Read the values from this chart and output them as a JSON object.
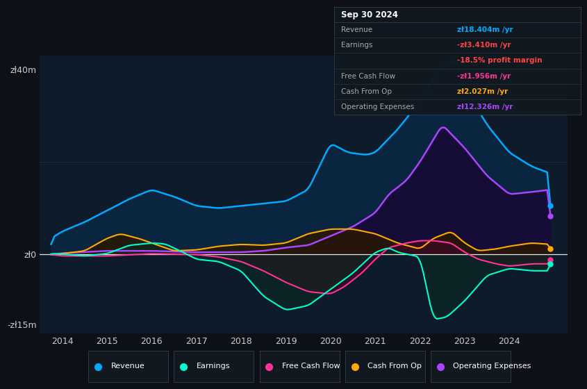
{
  "bg_color": "#0d1117",
  "plot_bg_color": "#0d1b2a",
  "ylim": [
    -17,
    43
  ],
  "xlim": [
    2013.5,
    2025.3
  ],
  "x_ticks": [
    2014,
    2015,
    2016,
    2017,
    2018,
    2019,
    2020,
    2021,
    2022,
    2023,
    2024
  ],
  "y_ticks": [
    40,
    0,
    -15
  ],
  "y_tick_labels": [
    "zł40m",
    "zł0",
    "-zł15m"
  ],
  "grid_line_y": 20,
  "colors": {
    "Revenue": "#00aaff",
    "Revenue_fill": "#0a2540",
    "Earnings": "#00ffcc",
    "Earnings_fill": "#0a2a20",
    "FreeCashFlow": "#ff3399",
    "FreeCashFlow_fill": "#3a0a20",
    "CashFromOp": "#ffaa00",
    "CashFromOp_fill": "#2a1800",
    "OperatingExpenses": "#aa44ff",
    "OperatingExpenses_fill": "#180a38"
  },
  "legend_items": [
    {
      "label": "Revenue",
      "color": "#00aaff"
    },
    {
      "label": "Earnings",
      "color": "#00ffcc"
    },
    {
      "label": "Free Cash Flow",
      "color": "#ff3399"
    },
    {
      "label": "Cash From Op",
      "color": "#ffaa00"
    },
    {
      "label": "Operating Expenses",
      "color": "#aa44ff"
    }
  ],
  "tooltip_title": "Sep 30 2024",
  "tooltip_rows": [
    {
      "label": "Revenue",
      "value": "zł18.404m /yr",
      "color": "#00aaff"
    },
    {
      "label": "Earnings",
      "value": "-zł3.410m /yr",
      "color": "#ff4444"
    },
    {
      "label": "",
      "value": "-18.5% profit margin",
      "color": "#ff4444"
    },
    {
      "label": "Free Cash Flow",
      "value": "-zł1.956m /yr",
      "color": "#ff3399"
    },
    {
      "label": "Cash From Op",
      "value": "zł2.027m /yr",
      "color": "#ffaa00"
    },
    {
      "label": "Operating Expenses",
      "value": "zł12.326m /yr",
      "color": "#aa44ff"
    }
  ],
  "revenue_pts": {
    "2013.75": 3.5,
    "2014.0": 5.0,
    "2014.5": 7.0,
    "2015.0": 9.5,
    "2015.5": 12.0,
    "2016.0": 14.0,
    "2016.5": 12.5,
    "2017.0": 10.5,
    "2017.5": 10.0,
    "2018.0": 10.5,
    "2018.5": 11.0,
    "2019.0": 11.5,
    "2019.5": 14.0,
    "2020.0": 24.0,
    "2020.4": 22.0,
    "2020.8": 21.5,
    "2021.0": 22.0,
    "2021.5": 27.0,
    "2022.0": 33.0,
    "2022.5": 41.0,
    "2022.8": 42.0,
    "2023.0": 36.0,
    "2023.5": 28.0,
    "2024.0": 22.0,
    "2024.5": 19.0,
    "2024.92": 17.5
  },
  "opex_pts": {
    "2013.75": 0.0,
    "2014.0": 0.3,
    "2015.0": 0.8,
    "2016.0": 0.8,
    "2017.0": 0.5,
    "2018.0": 0.5,
    "2018.5": 0.8,
    "2019.0": 1.5,
    "2019.5": 2.0,
    "2020.0": 4.0,
    "2020.5": 6.0,
    "2021.0": 9.0,
    "2021.3": 13.0,
    "2021.7": 16.0,
    "2022.0": 20.0,
    "2022.5": 28.0,
    "2023.0": 23.0,
    "2023.5": 17.0,
    "2024.0": 13.0,
    "2024.5": 13.5,
    "2024.92": 14.0
  },
  "cashop_pts": {
    "2013.75": 0.0,
    "2014.0": 0.2,
    "2014.5": 0.8,
    "2015.0": 3.5,
    "2015.3": 4.5,
    "2015.7": 3.5,
    "2016.0": 2.5,
    "2016.5": 0.8,
    "2017.0": 1.0,
    "2017.5": 1.8,
    "2018.0": 2.2,
    "2018.5": 2.0,
    "2019.0": 2.5,
    "2019.5": 4.5,
    "2020.0": 5.5,
    "2020.5": 5.5,
    "2021.0": 4.5,
    "2021.5": 2.5,
    "2022.0": 1.2,
    "2022.3": 3.5,
    "2022.7": 5.0,
    "2023.0": 2.5,
    "2023.3": 0.8,
    "2023.7": 1.2,
    "2024.0": 1.8,
    "2024.5": 2.5,
    "2024.92": 2.2
  },
  "earnings_pts": {
    "2013.75": 0.2,
    "2014.0": 0.1,
    "2014.5": -0.3,
    "2015.0": 0.2,
    "2015.5": 2.0,
    "2016.0": 2.5,
    "2016.3": 2.3,
    "2016.7": 0.5,
    "2017.0": -1.0,
    "2017.5": -1.5,
    "2018.0": -3.5,
    "2018.5": -9.0,
    "2019.0": -12.0,
    "2019.5": -11.0,
    "2020.0": -7.5,
    "2020.5": -4.0,
    "2021.0": 0.5,
    "2021.3": 1.5,
    "2021.5": 0.5,
    "2022.0": -0.5,
    "2022.3": -14.0,
    "2022.6": -13.5,
    "2023.0": -10.0,
    "2023.5": -4.5,
    "2024.0": -3.0,
    "2024.5": -3.5,
    "2024.92": -3.5
  },
  "fcf_pts": {
    "2013.75": 0.0,
    "2014.0": -0.3,
    "2015.0": -0.3,
    "2016.0": 0.2,
    "2016.5": 0.1,
    "2017.0": 0.0,
    "2017.5": -0.5,
    "2018.0": -1.5,
    "2018.5": -3.5,
    "2019.0": -6.0,
    "2019.5": -8.0,
    "2020.0": -8.5,
    "2020.3": -7.0,
    "2020.7": -4.0,
    "2021.0": -1.0,
    "2021.3": 1.5,
    "2021.7": 2.5,
    "2022.0": 3.0,
    "2022.3": 3.0,
    "2022.7": 2.5,
    "2023.0": 0.5,
    "2023.3": -1.0,
    "2023.7": -2.0,
    "2024.0": -2.5,
    "2024.5": -2.0,
    "2024.92": -2.0
  }
}
